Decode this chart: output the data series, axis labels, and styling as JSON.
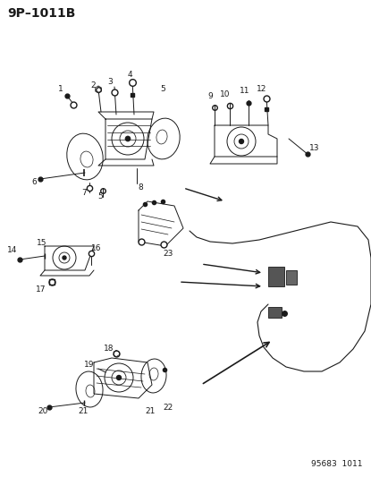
{
  "title": "9P–1011B",
  "footer": "95683  1011",
  "bg_color": "#ffffff",
  "line_color": "#1a1a1a",
  "title_fontsize": 10,
  "label_fontsize": 6.5,
  "footer_fontsize": 6.5,
  "fig_w": 4.15,
  "fig_h": 5.33,
  "dpi": 100
}
